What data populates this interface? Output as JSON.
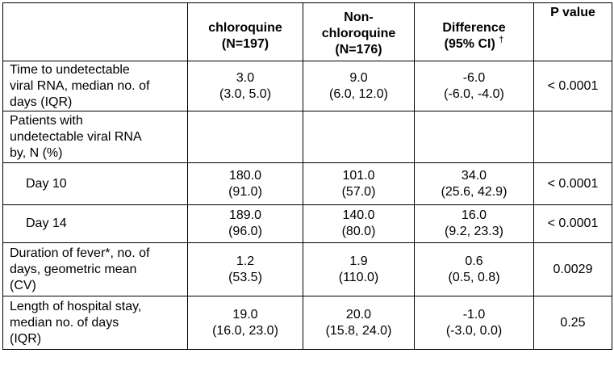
{
  "headers": {
    "empty": "",
    "chloroquine": [
      "chloroquine",
      "(N=197)"
    ],
    "non_chloroquine": [
      "Non-",
      "chloroquine",
      "(N=176)"
    ],
    "difference": [
      "Difference",
      "(95% CI)"
    ],
    "difference_mark": "†",
    "p_value": "P value"
  },
  "rows": [
    {
      "label": [
        "Time to undetectable",
        "viral RNA, median no. of",
        "days (IQR)"
      ],
      "chloroquine": [
        "3.0",
        "(3.0, 5.0)"
      ],
      "non_chloroquine": [
        "9.0",
        "(6.0, 12.0)"
      ],
      "difference": [
        "-6.0",
        "(-6.0, -4.0)"
      ],
      "p_value": "< 0.0001"
    },
    {
      "label": [
        "Patients with",
        "undetectable viral RNA",
        "by, N (%)"
      ],
      "chloroquine": [
        "",
        ""
      ],
      "non_chloroquine": [
        "",
        ""
      ],
      "difference": [
        "",
        ""
      ],
      "p_value": ""
    },
    {
      "label": [
        "Day 10"
      ],
      "chloroquine": [
        "180.0",
        "(91.0)"
      ],
      "non_chloroquine": [
        "101.0",
        "(57.0)"
      ],
      "difference": [
        "34.0",
        "(25.6, 42.9)"
      ],
      "p_value": "< 0.0001"
    },
    {
      "label": [
        "Day 14"
      ],
      "chloroquine": [
        "189.0",
        "(96.0)"
      ],
      "non_chloroquine": [
        "140.0",
        "(80.0)"
      ],
      "difference": [
        "16.0",
        "(9.2, 23.3)"
      ],
      "p_value": "< 0.0001"
    },
    {
      "label": [
        "Duration of fever*, no. of",
        "days, geometric mean",
        "(CV)"
      ],
      "chloroquine": [
        "1.2",
        "(53.5)"
      ],
      "non_chloroquine": [
        "1.9",
        "(110.0)"
      ],
      "difference": [
        "0.6",
        "(0.5, 0.8)"
      ],
      "p_value": "0.0029"
    },
    {
      "label": [
        "Length of hospital stay,",
        "median no. of days",
        "(IQR)"
      ],
      "chloroquine": [
        "19.0",
        "(16.0, 23.0)"
      ],
      "non_chloroquine": [
        "20.0",
        "(15.8, 24.0)"
      ],
      "difference": [
        "-1.0",
        "(-3.0, 0.0)"
      ],
      "p_value": "0.25"
    }
  ]
}
